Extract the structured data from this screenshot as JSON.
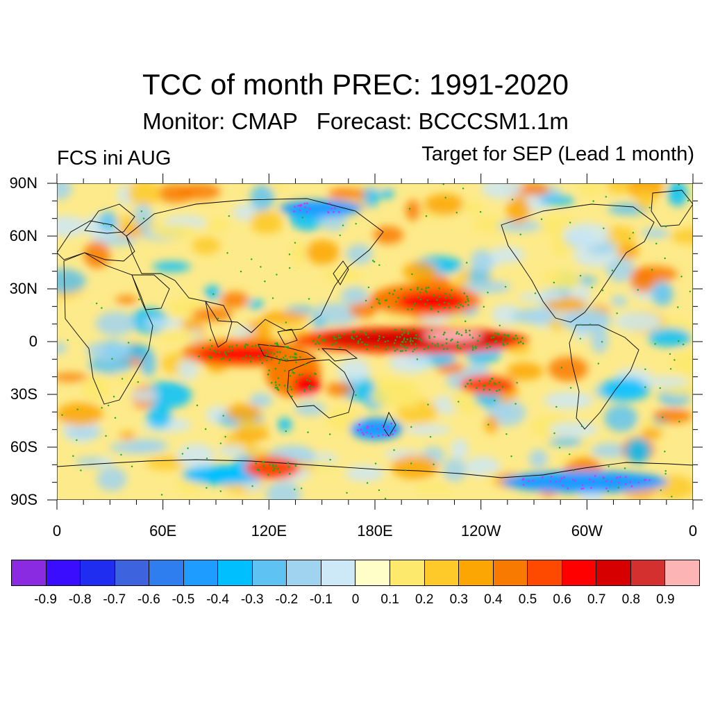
{
  "title": "TCC of month PREC: 1991-2020",
  "subtitle": "Monitor: CMAP   Forecast: BCCCSM1.1m",
  "left_label": "FCS ini AUG",
  "right_label": "Target for SEP (Lead 1 month)",
  "y_ticks": [
    "90N",
    "60N",
    "30N",
    "0",
    "30S",
    "60S",
    "90S"
  ],
  "x_ticks": [
    "0",
    "60E",
    "120E",
    "180E",
    "120W",
    "60W",
    "0"
  ],
  "colorbar": {
    "colors": [
      "#8a2be2",
      "#3a0dff",
      "#1e2df0",
      "#3d64de",
      "#2e7ef0",
      "#1e9cff",
      "#00bfff",
      "#5ec3f2",
      "#a0d3f0",
      "#cde8f6",
      "#fffdc8",
      "#fde96b",
      "#fdca2a",
      "#fba603",
      "#f97a00",
      "#fd4a00",
      "#ff0000",
      "#d60000",
      "#d43030",
      "#fcb4b4"
    ],
    "labels": [
      "-0.9",
      "-0.8",
      "-0.7",
      "-0.6",
      "-0.5",
      "-0.4",
      "-0.3",
      "-0.2",
      "-0.1",
      "0",
      "0.1",
      "0.2",
      "0.3",
      "0.4",
      "0.5",
      "0.6",
      "0.7",
      "0.8",
      "0.9"
    ]
  },
  "colors": {
    "significance_dots": "#1aaa1a",
    "significance_dots_negative": "#cc33ff",
    "coastline": "#000000"
  }
}
